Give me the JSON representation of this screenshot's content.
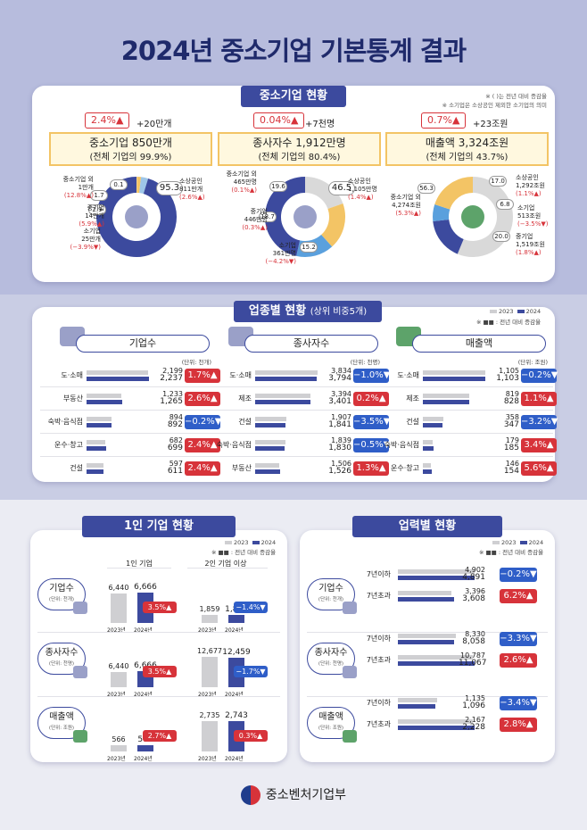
{
  "title": "2024년 중소기업 기본통계 결과",
  "sections": {
    "overview": "중소기업 현황",
    "industry": "업종별 현황",
    "industry_sub": "(상위 비중5개)",
    "solo": "1인 기업 현황",
    "age": "업력별 현황"
  },
  "notes": {
    "n1": "※ ( )는 전년 대비 증감율",
    "n2": "※ 소기업은 소상공인 제외한 소기업의 의미",
    "legend_2023": "2023",
    "legend_2024": "2024",
    "legend_change": "※ ■■ : 전년 대비 증감율"
  },
  "overview": [
    {
      "pct": "2.4%▲",
      "plus": "+20만개",
      "headline": "중소기업 850만개",
      "sub": "(전체 기업의 99.9%)",
      "left_labels": [
        {
          "name": "중소기업 외",
          "value": "1만개",
          "chg": "(12.8%▲)"
        },
        {
          "name": "중기업",
          "value": "14만개",
          "chg": "(5.9%▲)"
        },
        {
          "name": "소기업",
          "value": "25만개",
          "chg": "(−3.9%▼)"
        }
      ],
      "right_labels": [
        {
          "name": "소상공인",
          "value": "811만개",
          "chg": "(2.6%▲)"
        }
      ],
      "donut_nums": [
        "0.1",
        "1.7",
        "2.9",
        "95.3"
      ]
    },
    {
      "pct": "0.04%▲",
      "plus": "+7천명",
      "headline": "종사자수 1,912만명",
      "sub": "(전체 기업의 80.4%)",
      "left_labels": [
        {
          "name": "중소기업 외",
          "value": "465만명",
          "chg": "(0.1%▲)"
        },
        {
          "name": "중기업",
          "value": "446만명",
          "chg": "(0.3%▲)"
        },
        {
          "name": "소기업",
          "value": "361만명",
          "chg": "(−4.2%▼)"
        }
      ],
      "right_labels": [
        {
          "name": "소상공인",
          "value": "1,105만명",
          "chg": "(1.4%▲)"
        }
      ],
      "donut_nums": [
        "19.6",
        "18.7",
        "15.2",
        "46.5"
      ]
    },
    {
      "pct": "0.7%▲",
      "plus": "+23조원",
      "headline": "매출액 3,324조원",
      "sub": "(전체 기업의 43.7%)",
      "left_labels": [
        {
          "name": "중소기업 외",
          "value": "4,274조원",
          "chg": "(5.3%▲)"
        }
      ],
      "right_labels": [
        {
          "name": "소상공인",
          "value": "1,292조원",
          "chg": "(1.1%▲)"
        },
        {
          "name": "소기업",
          "value": "513조원",
          "chg": "(−3.5%▼)"
        },
        {
          "name": "중기업",
          "value": "1,519조원",
          "chg": "(1.8%▲)"
        }
      ],
      "donut_nums": [
        "56.3",
        "17.0",
        "6.8",
        "20.0"
      ]
    }
  ],
  "industry": [
    {
      "head": "기업수",
      "unit": "(단위: 천개)",
      "rows": [
        {
          "label": "도·소매",
          "v23": "2,199",
          "v24": "2,237",
          "chg": "1.7%▲",
          "dir": "up"
        },
        {
          "label": "부동산",
          "v23": "1,233",
          "v24": "1,265",
          "chg": "2.6%▲",
          "dir": "up"
        },
        {
          "label": "숙박·음식점",
          "v23": "894",
          "v24": "892",
          "chg": "−0.2%▼",
          "dir": "dn"
        },
        {
          "label": "운수·창고",
          "v23": "682",
          "v24": "699",
          "chg": "2.4%▲",
          "dir": "up"
        },
        {
          "label": "건설",
          "v23": "597",
          "v24": "611",
          "chg": "2.4%▲",
          "dir": "up"
        }
      ]
    },
    {
      "head": "종사자수",
      "unit": "(단위: 천명)",
      "rows": [
        {
          "label": "도·소매",
          "v23": "3,834",
          "v24": "3,794",
          "chg": "−1.0%▼",
          "dir": "dn"
        },
        {
          "label": "제조",
          "v23": "3,394",
          "v24": "3,401",
          "chg": "0.2%▲",
          "dir": "up"
        },
        {
          "label": "건설",
          "v23": "1,907",
          "v24": "1,841",
          "chg": "−3.5%▼",
          "dir": "dn"
        },
        {
          "label": "숙박·음식점",
          "v23": "1,839",
          "v24": "1,830",
          "chg": "−0.5%▼",
          "dir": "dn"
        },
        {
          "label": "부동산",
          "v23": "1,506",
          "v24": "1,526",
          "chg": "1.3%▲",
          "dir": "up"
        }
      ]
    },
    {
      "head": "매출액",
      "unit": "(단위: 조원)",
      "rows": [
        {
          "label": "도·소매",
          "v23": "1,105",
          "v24": "1,103",
          "chg": "−0.2%▼",
          "dir": "dn"
        },
        {
          "label": "제조",
          "v23": "819",
          "v24": "828",
          "chg": "1.1%▲",
          "dir": "up"
        },
        {
          "label": "건설",
          "v23": "358",
          "v24": "347",
          "chg": "−3.2%▼",
          "dir": "dn"
        },
        {
          "label": "숙박·음식점",
          "v23": "179",
          "v24": "185",
          "chg": "3.4%▲",
          "dir": "up"
        },
        {
          "label": "운수·창고",
          "v23": "146",
          "v24": "154",
          "chg": "5.6%▲",
          "dir": "up"
        }
      ]
    }
  ],
  "solo": {
    "col1": "1인 기업",
    "col2": "2인 기업 이상",
    "year23": "2023년",
    "year24": "2024년",
    "rows": [
      {
        "name": "기업수",
        "unit": "(단위: 천개)",
        "a23": "6,440",
        "a24": "6,666",
        "achg": "3.5%▲",
        "adir": "up",
        "b23": "1,859",
        "b24": "1,834",
        "bchg": "−1.4%▼",
        "bdir": "dn"
      },
      {
        "name": "종사자수",
        "unit": "(단위: 천명)",
        "a23": "6,440",
        "a24": "6,666",
        "achg": "3.5%▲",
        "adir": "up",
        "b23": "12,677",
        "b24": "12,459",
        "bchg": "−1.7%▼",
        "bdir": "dn"
      },
      {
        "name": "매출액",
        "unit": "(단위: 조원)",
        "a23": "566",
        "a24": "581",
        "achg": "2.7%▲",
        "adir": "up",
        "b23": "2,735",
        "b24": "2,743",
        "bchg": "0.3%▲",
        "bdir": "up"
      }
    ]
  },
  "age": {
    "rows": [
      {
        "name": "기업수",
        "unit": "(단위: 천개)",
        "items": [
          {
            "label": "7년이하",
            "v23": "4,902",
            "v24": "4,891",
            "chg": "−0.2%▼",
            "dir": "dn"
          },
          {
            "label": "7년초과",
            "v23": "3,396",
            "v24": "3,608",
            "chg": "6.2%▲",
            "dir": "up"
          }
        ]
      },
      {
        "name": "종사자수",
        "unit": "(단위: 천명)",
        "items": [
          {
            "label": "7년이하",
            "v23": "8,330",
            "v24": "8,058",
            "chg": "−3.3%▼",
            "dir": "dn"
          },
          {
            "label": "7년초과",
            "v23": "10,787",
            "v24": "11,067",
            "chg": "2.6%▲",
            "dir": "up"
          }
        ]
      },
      {
        "name": "매출액",
        "unit": "(단위: 조원)",
        "items": [
          {
            "label": "7년이하",
            "v23": "1,135",
            "v24": "1,096",
            "chg": "−3.4%▼",
            "dir": "dn"
          },
          {
            "label": "7년초과",
            "v23": "2,167",
            "v24": "2,228",
            "chg": "2.8%▲",
            "dir": "up"
          }
        ]
      }
    ]
  },
  "footer": "중소벤처기업부",
  "colors": {
    "navy": "#3c4a9e",
    "red": "#d7333a",
    "blue": "#2f5ec8",
    "gray": "#cfcfd2"
  },
  "chart_data": [
    {
      "type": "bar",
      "title": "업종별 현황 - 기업수",
      "categories": [
        "도·소매",
        "부동산",
        "숙박·음식점",
        "운수·창고",
        "건설"
      ],
      "series": [
        {
          "name": "2023",
          "values": [
            2199,
            1233,
            894,
            682,
            597
          ]
        },
        {
          "name": "2024",
          "values": [
            2237,
            1265,
            892,
            699,
            611
          ]
        }
      ]
    },
    {
      "type": "bar",
      "title": "업종별 현황 - 종사자수",
      "categories": [
        "도·소매",
        "제조",
        "건설",
        "숙박·음식점",
        "부동산"
      ],
      "series": [
        {
          "name": "2023",
          "values": [
            3834,
            3394,
            1907,
            1839,
            1506
          ]
        },
        {
          "name": "2024",
          "values": [
            3794,
            3401,
            1841,
            1830,
            1526
          ]
        }
      ]
    },
    {
      "type": "bar",
      "title": "업종별 현황 - 매출액",
      "categories": [
        "도·소매",
        "제조",
        "건설",
        "숙박·음식점",
        "운수·창고"
      ],
      "series": [
        {
          "name": "2023",
          "values": [
            1105,
            819,
            358,
            179,
            146
          ]
        },
        {
          "name": "2024",
          "values": [
            1103,
            828,
            347,
            185,
            154
          ]
        }
      ]
    },
    {
      "type": "pie",
      "title": "중소기업 850만개",
      "categories": [
        "중소기업 외",
        "중기업",
        "소기업",
        "소상공인"
      ],
      "values": [
        0.1,
        1.7,
        2.9,
        95.3
      ]
    },
    {
      "type": "pie",
      "title": "종사자수 1,912만명",
      "categories": [
        "중소기업 외",
        "중기업",
        "소기업",
        "소상공인"
      ],
      "values": [
        19.6,
        18.7,
        15.2,
        46.5
      ]
    },
    {
      "type": "pie",
      "title": "매출액 3,324조원",
      "categories": [
        "중소기업 외",
        "소상공인",
        "소기업",
        "중기업"
      ],
      "values": [
        56.3,
        17.0,
        6.8,
        20.0
      ]
    }
  ]
}
